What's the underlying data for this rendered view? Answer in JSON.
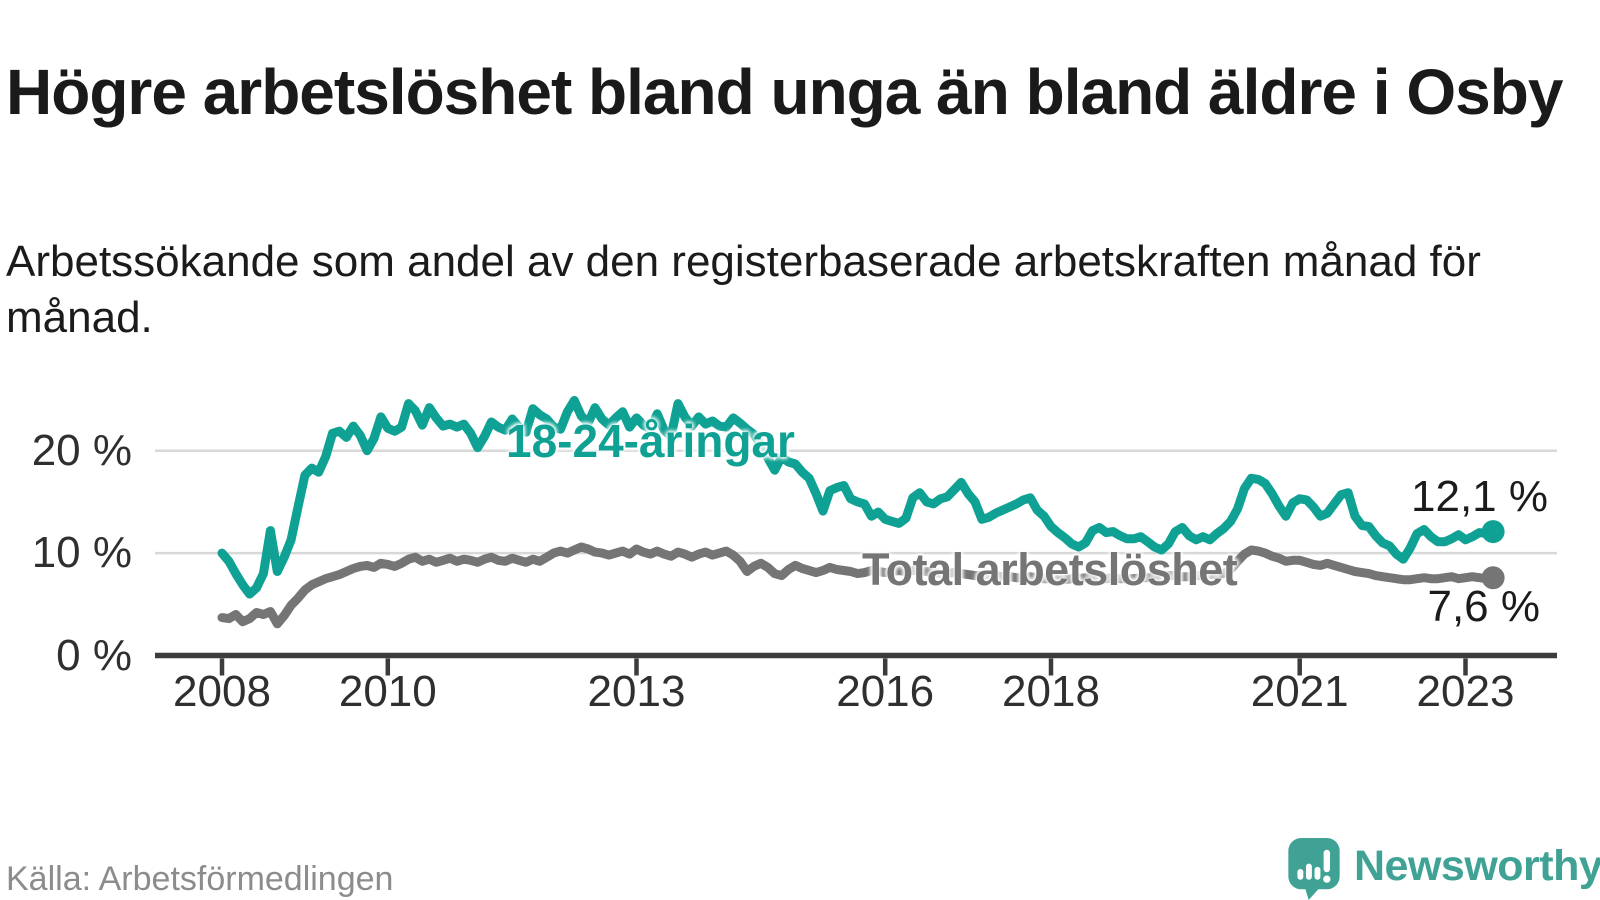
{
  "header": {
    "title": "Högre arbetslöshet bland unga än bland äldre i Osby",
    "subtitle": "Arbetssökande som andel av den registerbaserade arbetskraften månad för månad."
  },
  "footer": {
    "source": "Källa: Arbetsförmedlingen",
    "brand": "Newsworthy",
    "brand_color": "#3fa295"
  },
  "chart_data": {
    "type": "line",
    "title": "Högre arbetslöshet bland unga än bland äldre i Osby",
    "xlabel": "",
    "ylabel": "Arbetssökande som andel av den registerbaserade arbetskraften",
    "unit": "%",
    "grid": true,
    "x_axis": {
      "ticks": [
        2008,
        2010,
        2013,
        2016,
        2018,
        2021,
        2023
      ],
      "range": [
        2007.2,
        2024.1
      ]
    },
    "y_axis": {
      "ticks": [
        {
          "value": 20,
          "label": "20 %"
        },
        {
          "value": 10,
          "label": "10 %"
        },
        {
          "value": 0,
          "label": "0 %"
        }
      ],
      "range": [
        0,
        26
      ]
    },
    "start_year": 2008,
    "step_months": 1,
    "series": [
      {
        "name": "18-24-åringar",
        "color": "#0fa294",
        "end_label": "12,1 %",
        "last_value": 12.1,
        "values": [
          10.0,
          9.2,
          8.0,
          6.9,
          6.0,
          6.6,
          8.0,
          12.2,
          8.2,
          9.6,
          11.3,
          14.5,
          17.6,
          18.3,
          17.9,
          19.4,
          21.7,
          21.9,
          21.3,
          22.4,
          21.5,
          20.0,
          21.2,
          23.3,
          22.2,
          21.9,
          22.3,
          24.6,
          23.9,
          22.5,
          24.2,
          23.2,
          22.4,
          22.6,
          22.3,
          22.6,
          21.7,
          20.3,
          21.4,
          22.8,
          22.3,
          22.0,
          23.1,
          22.3,
          21.8,
          24.1,
          23.5,
          23.1,
          22.3,
          22.1,
          23.8,
          24.9,
          23.4,
          22.7,
          24.2,
          23.1,
          22.5,
          23.2,
          23.8,
          22.3,
          23.2,
          22.5,
          22.1,
          23.6,
          22.0,
          21.4,
          24.6,
          23.3,
          22.4,
          23.3,
          22.6,
          22.9,
          22.4,
          22.3,
          23.2,
          22.7,
          22.1,
          21.6,
          20.6,
          19.3,
          18.1,
          19.4,
          18.9,
          18.7,
          17.9,
          17.3,
          15.8,
          14.1,
          16.1,
          16.4,
          16.6,
          15.3,
          15.0,
          14.8,
          13.6,
          14.0,
          13.3,
          13.1,
          12.9,
          13.4,
          15.4,
          15.9,
          15.0,
          14.8,
          15.3,
          15.5,
          16.2,
          16.9,
          15.8,
          15.0,
          13.3,
          13.5,
          13.9,
          14.2,
          14.5,
          14.8,
          15.2,
          15.4,
          14.2,
          13.6,
          12.6,
          12.0,
          11.5,
          10.9,
          10.6,
          11.0,
          12.2,
          12.5,
          12.0,
          12.1,
          11.7,
          11.4,
          11.4,
          11.6,
          11.1,
          10.6,
          10.3,
          10.9,
          12.1,
          12.5,
          11.7,
          11.3,
          11.6,
          11.3,
          11.9,
          12.4,
          13.1,
          14.3,
          16.3,
          17.3,
          17.2,
          16.8,
          15.8,
          14.6,
          13.6,
          14.9,
          15.3,
          15.2,
          14.5,
          13.6,
          13.9,
          14.8,
          15.7,
          15.9,
          13.6,
          12.7,
          12.6,
          11.7,
          11.0,
          10.7,
          9.9,
          9.4,
          10.5,
          11.9,
          12.3,
          11.6,
          11.1,
          11.1,
          11.4,
          11.8,
          11.3,
          11.6,
          12.0,
          11.9,
          12.1
        ]
      },
      {
        "name": "Total arbetslöshet",
        "color": "#757575",
        "end_label": "7,6 %",
        "last_value": 7.6,
        "values": [
          3.7,
          3.6,
          4.0,
          3.3,
          3.6,
          4.2,
          4.0,
          4.3,
          3.1,
          3.9,
          4.9,
          5.6,
          6.4,
          6.9,
          7.2,
          7.5,
          7.7,
          7.9,
          8.2,
          8.5,
          8.7,
          8.8,
          8.6,
          9.0,
          8.9,
          8.7,
          9.0,
          9.4,
          9.6,
          9.2,
          9.4,
          9.1,
          9.3,
          9.5,
          9.2,
          9.4,
          9.3,
          9.1,
          9.4,
          9.6,
          9.3,
          9.2,
          9.5,
          9.3,
          9.1,
          9.4,
          9.2,
          9.6,
          10.0,
          10.2,
          10.0,
          10.3,
          10.6,
          10.4,
          10.1,
          10.0,
          9.8,
          10.0,
          10.2,
          9.9,
          10.4,
          10.1,
          9.9,
          10.2,
          9.9,
          9.7,
          10.1,
          9.9,
          9.6,
          9.9,
          10.1,
          9.8,
          10.0,
          10.2,
          9.8,
          9.2,
          8.2,
          8.7,
          9.0,
          8.6,
          8.0,
          7.8,
          8.4,
          8.8,
          8.5,
          8.3,
          8.1,
          8.3,
          8.6,
          8.4,
          8.3,
          8.2,
          8.0,
          8.1,
          8.3,
          8.2,
          8.1,
          8.2,
          8.3,
          8.2,
          8.3,
          8.3,
          8.2,
          8.1,
          8.0,
          8.0,
          8.1,
          8.0,
          7.9,
          7.8,
          7.8,
          7.9,
          7.8,
          7.7,
          7.7,
          7.6,
          7.6,
          7.7,
          7.6,
          7.5,
          7.5,
          7.4,
          7.4,
          7.5,
          7.5,
          7.6,
          7.6,
          7.5,
          7.5,
          7.6,
          7.5,
          7.5,
          7.5,
          7.6,
          7.6,
          7.7,
          7.7,
          7.8,
          7.8,
          7.7,
          7.7,
          7.8,
          7.8,
          7.9,
          7.9,
          8.0,
          8.4,
          9.2,
          9.9,
          10.3,
          10.2,
          10.0,
          9.7,
          9.5,
          9.2,
          9.3,
          9.3,
          9.1,
          8.9,
          8.8,
          9.0,
          8.8,
          8.6,
          8.4,
          8.2,
          8.1,
          8.0,
          7.8,
          7.7,
          7.6,
          7.5,
          7.4,
          7.4,
          7.5,
          7.6,
          7.5,
          7.5,
          7.6,
          7.7,
          7.5,
          7.6,
          7.7,
          7.6,
          7.5,
          7.6
        ]
      }
    ]
  }
}
